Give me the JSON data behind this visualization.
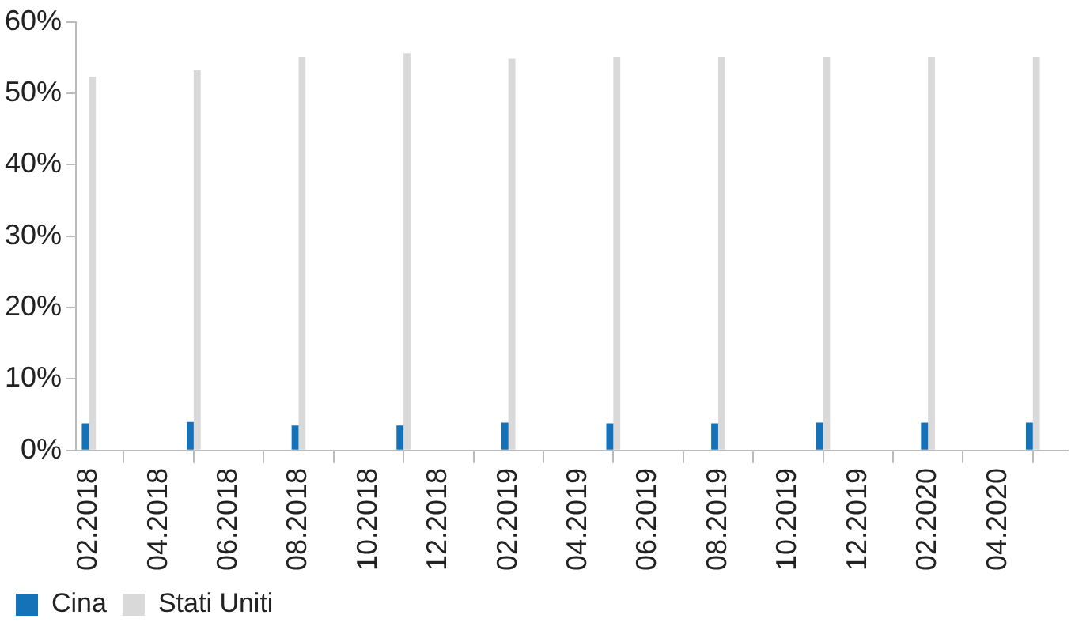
{
  "chart_data": {
    "type": "bar",
    "x": [
      "2018-02",
      "2018-05",
      "2018-08",
      "2018-11",
      "2019-02",
      "2019-05",
      "2019-08",
      "2019-11",
      "2020-02",
      "2020-05"
    ],
    "series": [
      {
        "name": "Cina",
        "color": "#1672b8",
        "values": [
          3.8,
          4.0,
          3.5,
          3.5,
          3.9,
          3.8,
          3.8,
          3.9,
          3.9,
          3.9
        ]
      },
      {
        "name": "Stati Uniti",
        "color": "#d9d9d9",
        "values": [
          52.3,
          53.2,
          55.1,
          55.6,
          54.8,
          55.1,
          55.1,
          55.1,
          55.1,
          55.1
        ]
      }
    ],
    "ylim": [
      0,
      60
    ],
    "yticks": [
      {
        "value": 0,
        "label": "0%"
      },
      {
        "value": 10,
        "label": "10%"
      },
      {
        "value": 20,
        "label": "20%"
      },
      {
        "value": 30,
        "label": "30%"
      },
      {
        "value": 40,
        "label": "40%"
      },
      {
        "value": 50,
        "label": "50%"
      },
      {
        "value": 60,
        "label": "60%"
      }
    ],
    "xlim": [
      "2018-01-20",
      "2020-06-01"
    ],
    "xticks": [
      {
        "value": "2018-02",
        "label": "02.2018"
      },
      {
        "value": "2018-04",
        "label": "04.2018"
      },
      {
        "value": "2018-06",
        "label": "06.2018"
      },
      {
        "value": "2018-08",
        "label": "08.2018"
      },
      {
        "value": "2018-10",
        "label": "10.2018"
      },
      {
        "value": "2018-12",
        "label": "12.2018"
      },
      {
        "value": "2019-02",
        "label": "02.2019"
      },
      {
        "value": "2019-04",
        "label": "04.2019"
      },
      {
        "value": "2019-06",
        "label": "06.2019"
      },
      {
        "value": "2019-08",
        "label": "08.2019"
      },
      {
        "value": "2019-10",
        "label": "10.2019"
      },
      {
        "value": "2019-12",
        "label": "12.2019"
      },
      {
        "value": "2020-02",
        "label": "02.2020"
      },
      {
        "value": "2020-04",
        "label": "04.2020"
      }
    ],
    "grid": false,
    "legend": "bottom left"
  }
}
